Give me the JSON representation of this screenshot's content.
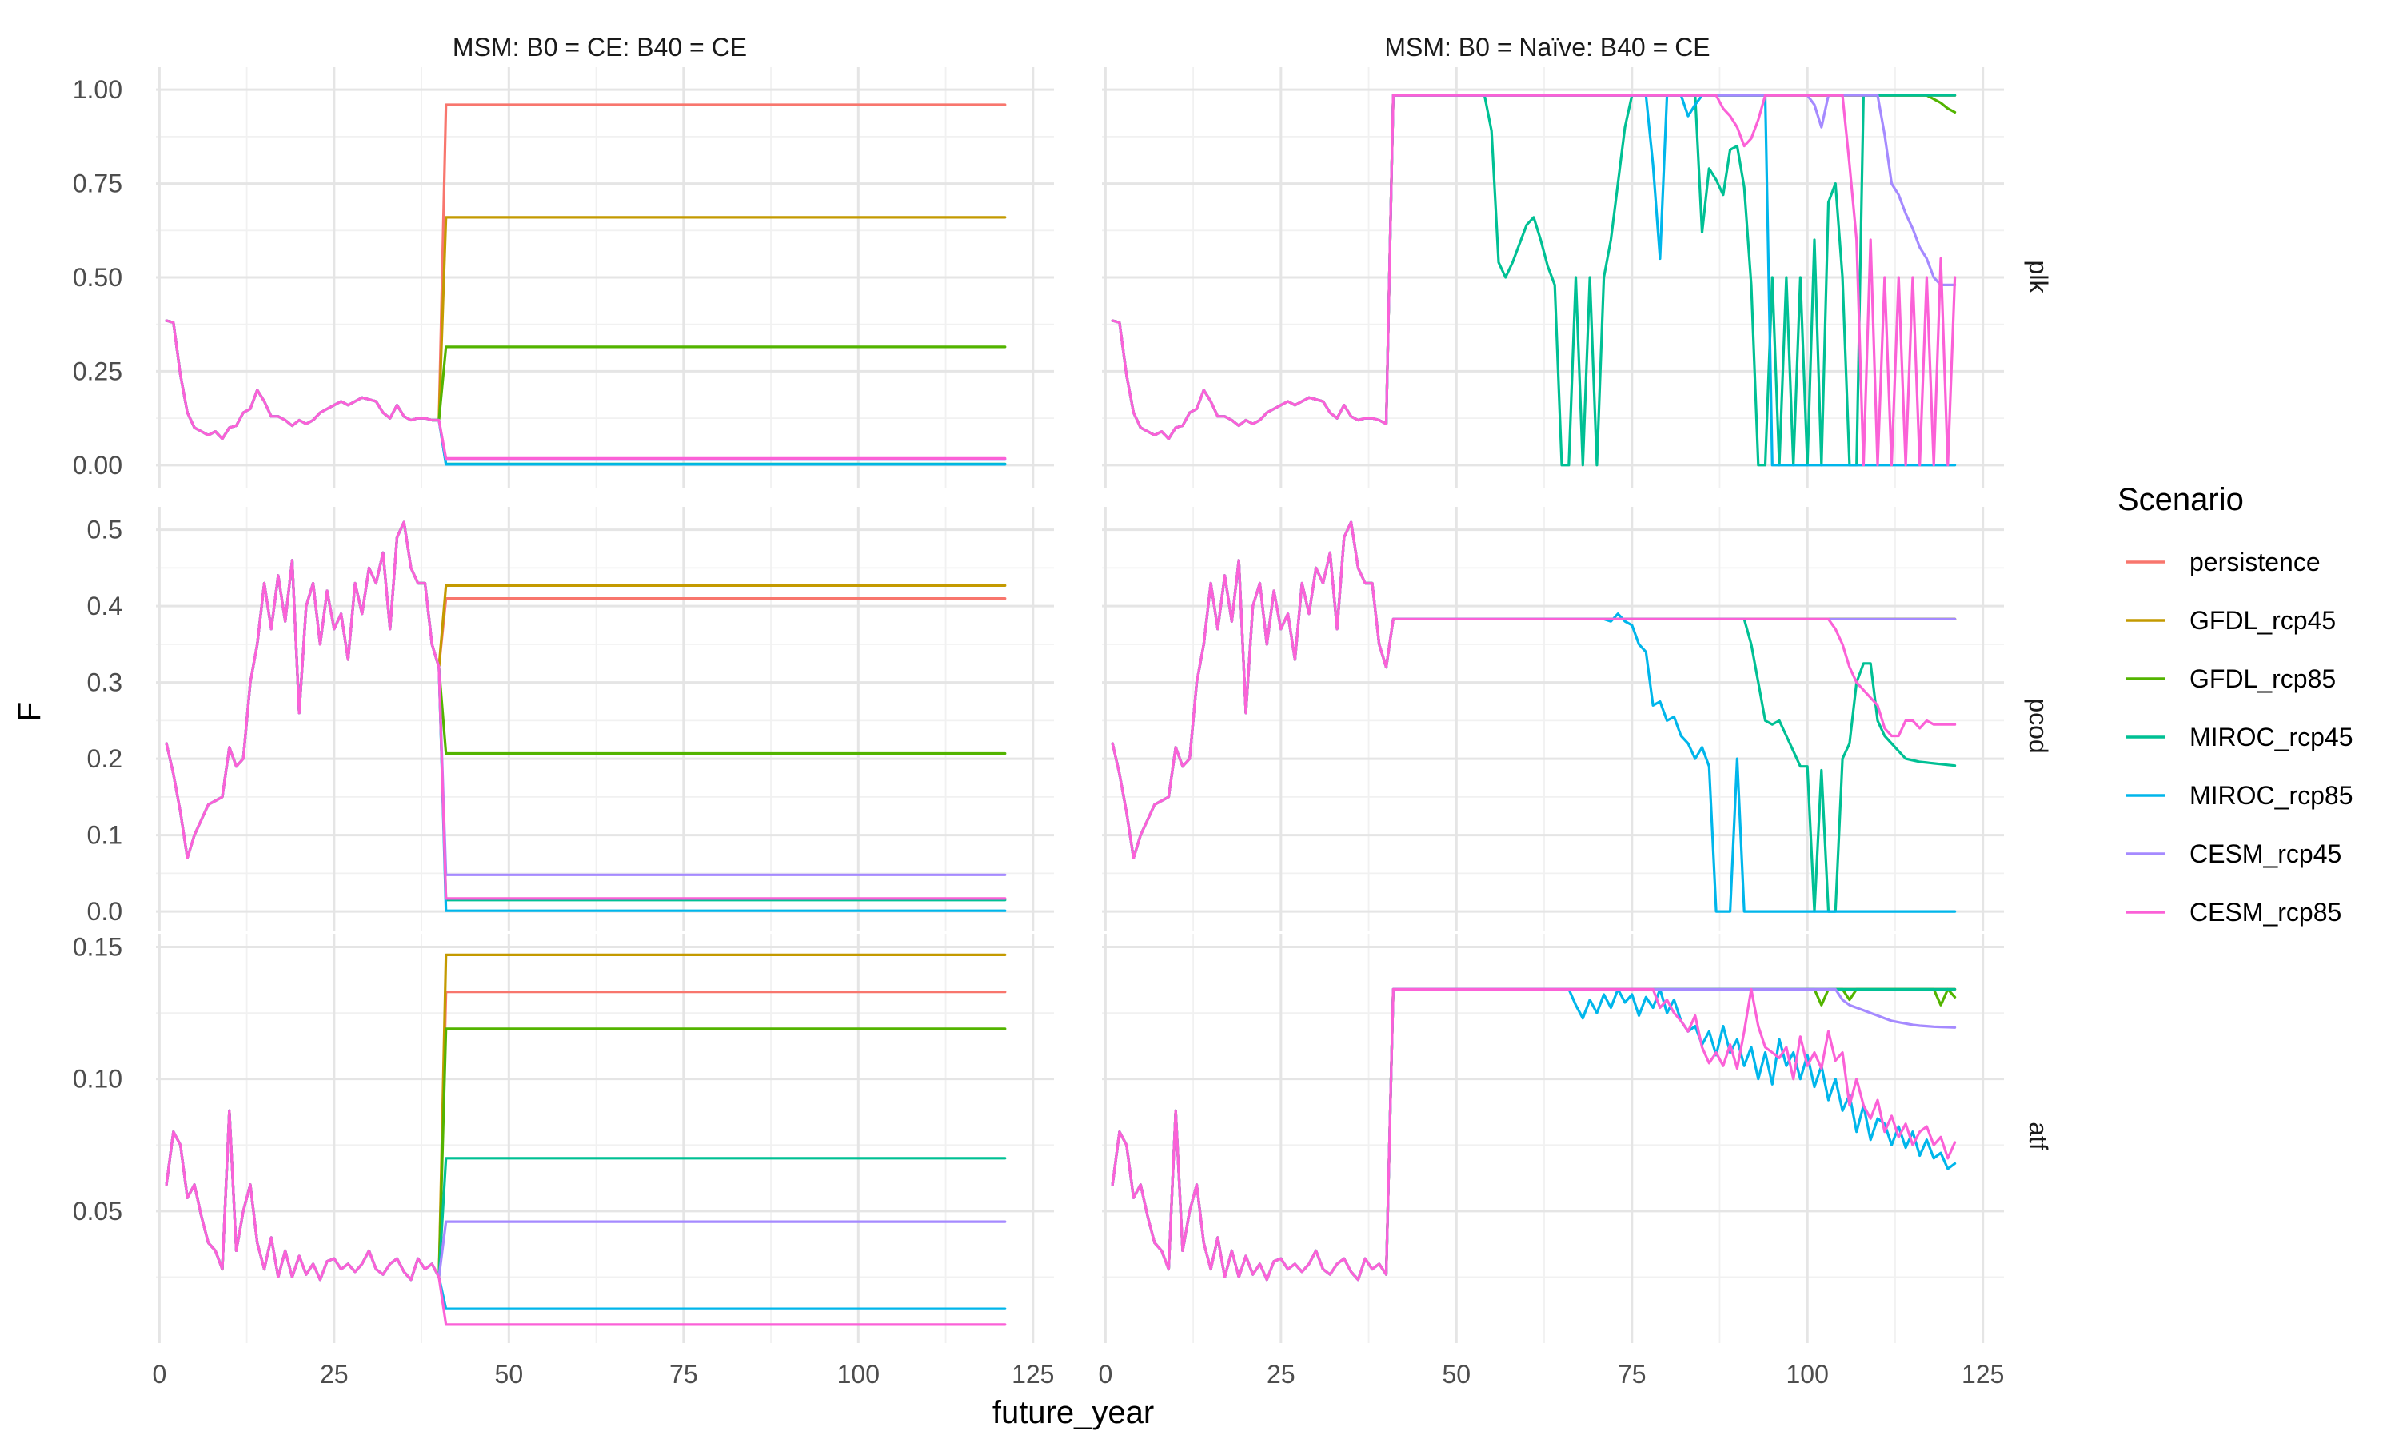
{
  "chart_data": {
    "type": "line",
    "xlabel": "future_year",
    "ylabel": "F",
    "xlim": [
      0,
      125
    ],
    "x_ticks": [
      0,
      25,
      50,
      75,
      100,
      125
    ],
    "columns": [
      "MSM: B0 = CE: B40 = CE",
      "MSM: B0 = Naïve: B40 = CE"
    ],
    "rows": [
      {
        "name": "plk",
        "ylim": [
          0,
          1
        ],
        "ticks": [
          0,
          0.25,
          0.5,
          0.75,
          1
        ],
        "tick_labels": [
          "0.00",
          "0.25",
          "0.50",
          "0.75",
          "1.00"
        ]
      },
      {
        "name": "pcod",
        "ylim": [
          0,
          0.5
        ],
        "ticks": [
          0,
          0.1,
          0.2,
          0.3,
          0.4,
          0.5
        ],
        "tick_labels": [
          "0.0",
          "0.1",
          "0.2",
          "0.3",
          "0.4",
          "0.5"
        ]
      },
      {
        "name": "atf",
        "ylim": [
          0.05,
          0.15
        ],
        "ticks": [
          0.05,
          0.1,
          0.15
        ],
        "tick_labels": [
          "0.05",
          "0.10",
          "0.15"
        ]
      }
    ],
    "legend": {
      "title": "Scenario",
      "position": "right"
    },
    "series": [
      {
        "name": "persistence",
        "color": "#F8766D"
      },
      {
        "name": "GFDL_rcp45",
        "color": "#C49A00"
      },
      {
        "name": "GFDL_rcp85",
        "color": "#53B400"
      },
      {
        "name": "MIROC_rcp45",
        "color": "#00C094"
      },
      {
        "name": "MIROC_rcp85",
        "color": "#00B6EB"
      },
      {
        "name": "CESM_rcp45",
        "color": "#A58AFF"
      },
      {
        "name": "CESM_rcp85",
        "color": "#FB61D7"
      }
    ],
    "hindcast": {
      "years_start": 1,
      "plk": [
        0.385,
        0.38,
        0.24,
        0.14,
        0.1,
        0.09,
        0.08,
        0.09,
        0.07,
        0.1,
        0.105,
        0.14,
        0.15,
        0.2,
        0.17,
        0.13,
        0.13,
        0.12,
        0.105,
        0.12,
        0.11,
        0.12,
        0.14,
        0.15,
        0.16,
        0.17,
        0.16,
        0.17,
        0.18,
        0.175,
        0.17,
        0.14,
        0.125,
        0.16,
        0.13,
        0.12,
        0.125,
        0.125,
        0.12
      ],
      "pcod": [
        0.22,
        0.18,
        0.13,
        0.07,
        0.1,
        0.12,
        0.14,
        0.145,
        0.15,
        0.215,
        0.19,
        0.2,
        0.3,
        0.35,
        0.43,
        0.37,
        0.44,
        0.38,
        0.46,
        0.26,
        0.4,
        0.43,
        0.35,
        0.42,
        0.37,
        0.39,
        0.33,
        0.43,
        0.39,
        0.45,
        0.43,
        0.47,
        0.37,
        0.49,
        0.51,
        0.45,
        0.43,
        0.43,
        0.35
      ],
      "atf": [
        0.06,
        0.08,
        0.075,
        0.055,
        0.06,
        0.048,
        0.038,
        0.035,
        0.028,
        0.088,
        0.035,
        0.05,
        0.06,
        0.038,
        0.028,
        0.04,
        0.025,
        0.035,
        0.025,
        0.033,
        0.026,
        0.03,
        0.024,
        0.031,
        0.032,
        0.028,
        0.03,
        0.027,
        0.03,
        0.035,
        0.028,
        0.026,
        0.03,
        0.032,
        0.027,
        0.024,
        0.032,
        0.028,
        0.03
      ]
    },
    "panel_left": {
      "plk": {
        "hindcast_end": 0.12,
        "levels": [
          0.96,
          0.66,
          0.315,
          0.003,
          0.002,
          0.015,
          0.018
        ]
      },
      "pcod": {
        "hindcast_end": 0.32,
        "levels": [
          0.41,
          0.427,
          0.207,
          0.015,
          0.001,
          0.048,
          0.017
        ]
      },
      "atf": {
        "hindcast_end": 0.025,
        "levels": [
          0.133,
          0.147,
          0.119,
          0.07,
          0.013,
          0.046,
          0.007
        ]
      }
    },
    "panel_right": {
      "plk": {
        "hindcast_end": 0.11,
        "base": 0.985,
        "deviations": {
          "GFDL_rcp85": {
            "from": 117,
            "values": [
              0.985,
              0.975,
              0.965,
              0.95,
              0.94
            ]
          },
          "MIROC_rcp45": {
            "from": 54,
            "values": [
              0.985,
              0.89,
              0.54,
              0.5,
              0.54,
              0.59,
              0.64,
              0.66,
              0.6,
              0.53,
              0.48,
              0,
              0,
              0.5,
              0,
              0.5,
              0,
              0.5,
              0.6,
              0.75,
              0.9,
              0.985,
              0.985,
              0.985,
              0.985,
              0.985,
              0.985,
              0.985,
              0.985,
              0.985,
              0.985,
              0.62,
              0.79,
              0.76,
              0.72,
              0.84,
              0.85,
              0.74,
              0.48,
              0,
              0,
              0.5,
              0,
              0.5,
              0,
              0.5,
              0,
              0.6,
              0,
              0.7,
              0.75,
              0.5,
              0,
              0
            ]
          },
          "MIROC_rcp85": {
            "from": 64,
            "values": [
              0.985,
              0.985,
              0.985,
              0.985,
              0.985,
              0.985,
              0.985,
              0.985,
              0.985,
              0.985,
              0.985,
              0.985,
              0.985,
              0.985,
              0.8,
              0.55,
              0.985,
              0.985,
              0.985,
              0.93,
              0.96,
              0.985,
              0.985,
              0.985,
              0.985,
              0.985,
              0.985,
              0.985,
              0.985,
              0.985,
              0.985
            ]
          },
          "CESM_rcp45": {
            "from": 96,
            "values": [
              0.985,
              0.985,
              0.985,
              0.985,
              0.985,
              0.96,
              0.9,
              0.985,
              0.985,
              0.985,
              0.985,
              0.985,
              0.985,
              0.985,
              0.985,
              0.88,
              0.75,
              0.72,
              0.67,
              0.63,
              0.58,
              0.55,
              0.5,
              0.48,
              0.48,
              0.48
            ]
          },
          "CESM_rcp85": {
            "from": 87,
            "values": [
              0.985,
              0.95,
              0.93,
              0.9,
              0.85,
              0.87,
              0.92,
              0.985,
              0.985,
              0.985,
              0.985,
              0.985,
              0.985,
              0.985,
              0.985,
              0.985,
              0.985,
              0.985,
              0.985,
              0.8,
              0.6,
              0,
              0.6,
              0,
              0.5,
              0,
              0.5,
              0,
              0.5,
              0,
              0.5,
              0,
              0.55,
              0,
              0.5
            ]
          }
        },
        "pulse_series": "MIROC_rcp85",
        "pulse": {
          "from": 71,
          "to": 85,
          "high": 0.5,
          "low": 0
        },
        "zero_after": {
          "MIROC_rcp85": 86
        }
      },
      "pcod": {
        "hindcast_end": 0.32,
        "base": 0.383,
        "deviations": {
          "MIROC_rcp85": {
            "from": 71,
            "values": [
              0.383,
              0.38,
              0.39,
              0.38,
              0.375,
              0.35,
              0.34,
              0.27,
              0.275,
              0.25,
              0.255,
              0.23,
              0.22,
              0.2,
              0.215,
              0.19,
              0,
              0,
              0,
              0.2,
              0,
              0,
              0,
              0,
              0,
              0,
              0,
              0,
              0,
              0,
              0,
              0,
              0,
              0,
              0,
              0,
              0,
              0,
              0,
              0,
              0,
              0,
              0,
              0,
              0,
              0,
              0,
              0,
              0,
              0,
              0
            ]
          },
          "MIROC_rcp45": {
            "from": 91,
            "values": [
              0.383,
              0.35,
              0.3,
              0.25,
              0.245,
              0.25,
              0.23,
              0.21,
              0.19,
              0.19,
              0,
              0.185,
              0,
              0,
              0.2,
              0.22,
              0.3,
              0.325,
              0.325,
              0.25,
              0.23,
              0.22,
              0.21,
              0.2,
              0.198,
              0.196,
              0.195,
              0.194,
              0.193,
              0.192,
              0.191
            ]
          },
          "CESM_rcp85": {
            "from": 103,
            "values": [
              0.383,
              0.37,
              0.35,
              0.32,
              0.3,
              0.29,
              0.28,
              0.27,
              0.24,
              0.23,
              0.23,
              0.25,
              0.25,
              0.24,
              0.25,
              0.245,
              0.245,
              0.245,
              0.245
            ]
          }
        }
      },
      "atf": {
        "hindcast_end": 0.026,
        "base": 0.134,
        "deviations": {
          "GFDL_rcp85": {
            "from": 101,
            "values": [
              0.134,
              0.128,
              0.134,
              0.134,
              0.134,
              0.13,
              0.134,
              0.134,
              0.134,
              0.134,
              0.134,
              0.134,
              0.134,
              0.134,
              0.134,
              0.134,
              0.134,
              0.134,
              0.128,
              0.134,
              0.131
            ]
          },
          "MIROC_rcp45": {
            "from": 66,
            "values": [
              0.134,
              0.134,
              0.134,
              0.134,
              0.134,
              0.134,
              0.134,
              0.134,
              0.134,
              0.134,
              0.134,
              0.134,
              0.134,
              0.134,
              0.134,
              0.134,
              0.134,
              0.134,
              0.134,
              0.134,
              0.134,
              0.134,
              0.134,
              0.134,
              0.134,
              0.134,
              0.134,
              0.134,
              0.134,
              0.134,
              0.134,
              0.134,
              0.134,
              0.134,
              0.134,
              0.134,
              0.134,
              0.134,
              0.134,
              0.134,
              0.134,
              0.134,
              0.134,
              0.134,
              0.134,
              0.134,
              0.134,
              0.134,
              0.134,
              0.134,
              0.134,
              0.134,
              0.134,
              0.134,
              0.134,
              0.134
            ]
          },
          "MIROC_rcp85": {
            "from": 66,
            "values": [
              0.134,
              0.128,
              0.123,
              0.13,
              0.125,
              0.132,
              0.127,
              0.134,
              0.129,
              0.132,
              0.124,
              0.131,
              0.127,
              0.134,
              0.125,
              0.13,
              0.122,
              0.118,
              0.12,
              0.113,
              0.118,
              0.109,
              0.12,
              0.11,
              0.115,
              0.105,
              0.112,
              0.1,
              0.11,
              0.098,
              0.115,
              0.105,
              0.11,
              0.1,
              0.109,
              0.097,
              0.105,
              0.092,
              0.1,
              0.088,
              0.094,
              0.08,
              0.09,
              0.077,
              0.085,
              0.083,
              0.075,
              0.082,
              0.074,
              0.08,
              0.071,
              0.077,
              0.07,
              0.072,
              0.066,
              0.068,
              0.063
            ]
          },
          "CESM_rcp45": {
            "from": 104,
            "values": [
              0.134,
              0.13,
              0.128,
              0.127,
              0.126,
              0.125,
              0.124,
              0.123,
              0.122,
              0.1215,
              0.121,
              0.1205,
              0.1202,
              0.12,
              0.1198,
              0.1197,
              0.1196,
              0.1195
            ]
          },
          "CESM_rcp85": {
            "from": 77,
            "values": [
              0.134,
              0.134,
              0.127,
              0.13,
              0.125,
              0.122,
              0.118,
              0.124,
              0.112,
              0.106,
              0.11,
              0.105,
              0.113,
              0.104,
              0.118,
              0.134,
              0.12,
              0.112,
              0.11,
              0.108,
              0.112,
              0.1,
              0.116,
              0.105,
              0.11,
              0.104,
              0.118,
              0.107,
              0.11,
              0.09,
              0.1,
              0.09,
              0.085,
              0.092,
              0.08,
              0.086,
              0.078,
              0.083,
              0.075,
              0.08,
              0.082,
              0.075,
              0.078,
              0.07,
              0.076,
              0.072,
              0.065
            ]
          }
        }
      }
    }
  }
}
